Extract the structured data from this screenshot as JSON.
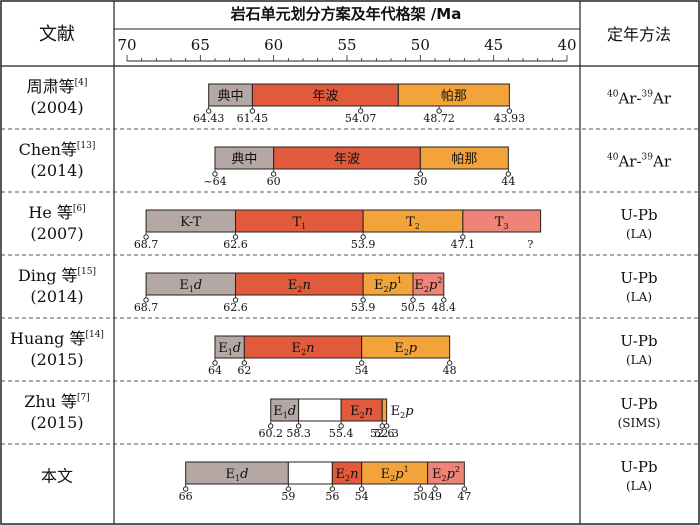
{
  "header": {
    "col_left": "文献",
    "col_mid": "岩石单元划分方案及年代格架 /Ma",
    "col_right": "定年方法"
  },
  "chart_data": {
    "type": "timeline",
    "xlabel": "Ma",
    "xlim": [
      70,
      40
    ],
    "axis_ticks": [
      70,
      65,
      60,
      55,
      50,
      45,
      40
    ],
    "minor_tick_step": 1,
    "colors": {
      "grey": "#b4a7a4",
      "red": "#e15a3c",
      "orange": "#f2a43a",
      "pink": "#ee8478",
      "white": "#ffffff"
    },
    "studies": [
      {
        "author": "周肃等",
        "ref": "[4]",
        "year": "(2004)",
        "method": "40Ar-39Ar",
        "method_sup1": "40",
        "method_base1": "Ar-",
        "method_sup2": "39",
        "method_base2": "Ar",
        "method_sub": "",
        "segments": [
          {
            "from": 64.43,
            "to": 61.45,
            "color": "grey",
            "label": "典中",
            "label_style": "cjk"
          },
          {
            "from": 61.45,
            "to": 51.5,
            "color": "red",
            "label": "年波",
            "label_style": "cjk"
          },
          {
            "from": 51.5,
            "to": 43.93,
            "color": "orange",
            "label": "帕那",
            "label_style": "cjk"
          }
        ],
        "ages": [
          {
            "x": 64.43,
            "label": "64.43"
          },
          {
            "x": 61.45,
            "label": "61.45"
          },
          {
            "x": 54.07,
            "label": "54.07"
          },
          {
            "x": 48.72,
            "label": "48.72"
          },
          {
            "x": 43.93,
            "label": "43.93"
          }
        ]
      },
      {
        "author": "Chen等",
        "ref": "[13]",
        "year": "(2014)",
        "method": "40Ar-39Ar",
        "method_sup1": "40",
        "method_base1": "Ar-",
        "method_sup2": "39",
        "method_base2": "Ar",
        "method_sub": "",
        "segments": [
          {
            "from": 64,
            "to": 60,
            "color": "grey",
            "label": "典中",
            "label_style": "cjk"
          },
          {
            "from": 60,
            "to": 50,
            "color": "red",
            "label": "年波",
            "label_style": "cjk"
          },
          {
            "from": 50,
            "to": 44,
            "color": "orange",
            "label": "帕那",
            "label_style": "cjk"
          }
        ],
        "ages": [
          {
            "x": 64,
            "label": "~64"
          },
          {
            "x": 60,
            "label": "60"
          },
          {
            "x": 50,
            "label": "50"
          },
          {
            "x": 44,
            "label": "44"
          }
        ]
      },
      {
        "author": "He 等",
        "ref": "[6]",
        "year": "(2007)",
        "method": "U-Pb",
        "method_sub": "(LA)",
        "segments": [
          {
            "from": 68.7,
            "to": 62.6,
            "color": "grey",
            "label": "K-T",
            "label_style": "plain"
          },
          {
            "from": 62.6,
            "to": 53.9,
            "color": "red",
            "label": "T",
            "label_sub": "1",
            "label_style": "tsub"
          },
          {
            "from": 53.9,
            "to": 47.1,
            "color": "orange",
            "label": "T",
            "label_sub": "2",
            "label_style": "tsub"
          },
          {
            "from": 47.1,
            "to": 41.8,
            "color": "pink",
            "label": "T",
            "label_sub": "3",
            "label_style": "tsub"
          }
        ],
        "ages": [
          {
            "x": 68.7,
            "label": "68.7"
          },
          {
            "x": 62.6,
            "label": "62.6"
          },
          {
            "x": 53.9,
            "label": "53.9"
          },
          {
            "x": 47.1,
            "label": "47.1"
          },
          {
            "x": 42.5,
            "label": "?",
            "no_marker": true
          }
        ]
      },
      {
        "author": "Ding 等",
        "ref": "[15]",
        "year": "(2014)",
        "method": "U-Pb",
        "method_sub": "(LA)",
        "segments": [
          {
            "from": 68.7,
            "to": 62.6,
            "color": "grey",
            "label_a": "E",
            "label_b": "1",
            "label_c": "d",
            "label_d": "",
            "label_style": "formation"
          },
          {
            "from": 62.6,
            "to": 53.9,
            "color": "red",
            "label_a": "E",
            "label_b": "2",
            "label_c": "n",
            "label_d": "",
            "label_style": "formation"
          },
          {
            "from": 53.9,
            "to": 50.5,
            "color": "orange",
            "label_a": "E",
            "label_b": "2",
            "label_c": "p",
            "label_d": "1",
            "label_style": "formation"
          },
          {
            "from": 50.5,
            "to": 48.4,
            "color": "pink",
            "label_a": "E",
            "label_b": "2",
            "label_c": "p",
            "label_d": "2",
            "label_style": "formation"
          }
        ],
        "ages": [
          {
            "x": 68.7,
            "label": "68.7"
          },
          {
            "x": 62.6,
            "label": "62.6"
          },
          {
            "x": 53.9,
            "label": "53.9"
          },
          {
            "x": 50.5,
            "label": "50.5"
          },
          {
            "x": 48.4,
            "label": "48.4"
          }
        ]
      },
      {
        "author": "Huang 等",
        "ref": "[14]",
        "year": "(2015)",
        "method": "U-Pb",
        "method_sub": "(LA)",
        "segments": [
          {
            "from": 64,
            "to": 62,
            "color": "grey",
            "label_a": "E",
            "label_b": "1",
            "label_c": "d",
            "label_d": "",
            "label_style": "formation"
          },
          {
            "from": 62,
            "to": 54,
            "color": "red",
            "label_a": "E",
            "label_b": "2",
            "label_c": "n",
            "label_d": "",
            "label_style": "formation"
          },
          {
            "from": 54,
            "to": 48,
            "color": "orange",
            "label_a": "E",
            "label_b": "2",
            "label_c": "p",
            "label_d": "",
            "label_style": "formation"
          }
        ],
        "ages": [
          {
            "x": 64,
            "label": "64"
          },
          {
            "x": 62,
            "label": "62"
          },
          {
            "x": 54,
            "label": "54"
          },
          {
            "x": 48,
            "label": "48"
          }
        ]
      },
      {
        "author": "Zhu 等",
        "ref": "[7]",
        "year": "(2015)",
        "method": "U-Pb",
        "method_sub": "(SIMS)",
        "segments": [
          {
            "from": 60.2,
            "to": 58.3,
            "color": "grey",
            "label_a": "E",
            "label_b": "1",
            "label_c": "d",
            "label_d": "",
            "label_style": "formation"
          },
          {
            "from": 58.3,
            "to": 55.4,
            "color": "white",
            "label_style": "none"
          },
          {
            "from": 55.4,
            "to": 52.6,
            "color": "red",
            "label_a": "E",
            "label_b": "2",
            "label_c": "n",
            "label_d": "",
            "label_style": "formation"
          },
          {
            "from": 52.6,
            "to": 52.3,
            "color": "orange",
            "label_a": "E",
            "label_b": "2",
            "label_c": "p",
            "label_d": "",
            "label_style": "formation",
            "label_outside": true
          }
        ],
        "ages": [
          {
            "x": 60.2,
            "label": "60.2"
          },
          {
            "x": 58.3,
            "label": "58.3"
          },
          {
            "x": 55.4,
            "label": "55.4"
          },
          {
            "x": 52.6,
            "label": "52.6"
          },
          {
            "x": 52.3,
            "label": "52.3"
          }
        ]
      },
      {
        "author": "本文",
        "ref": "",
        "year": "",
        "method": "U-Pb",
        "method_sub": "(LA)",
        "segments": [
          {
            "from": 66,
            "to": 59,
            "color": "grey",
            "label_a": "E",
            "label_b": "1",
            "label_c": "d",
            "label_d": "",
            "label_style": "formation"
          },
          {
            "from": 59,
            "to": 56,
            "color": "white",
            "label_style": "none"
          },
          {
            "from": 56,
            "to": 54,
            "color": "red",
            "label_a": "E",
            "label_b": "2",
            "label_c": "n",
            "label_d": "",
            "label_style": "formation"
          },
          {
            "from": 54,
            "to": 49.5,
            "color": "orange",
            "label_a": "E",
            "label_b": "2",
            "label_c": "p",
            "label_d": "1",
            "label_style": "formation"
          },
          {
            "from": 49.5,
            "to": 47,
            "color": "pink",
            "label_a": "E",
            "label_b": "2",
            "label_c": "p",
            "label_d": "2",
            "label_style": "formation"
          }
        ],
        "ages": [
          {
            "x": 66,
            "label": "66"
          },
          {
            "x": 59,
            "label": "59"
          },
          {
            "x": 56,
            "label": "56"
          },
          {
            "x": 54,
            "label": "54"
          },
          {
            "x": 50,
            "label": "50"
          },
          {
            "x": 49,
            "label": "49"
          },
          {
            "x": 47,
            "label": "47"
          }
        ]
      }
    ]
  }
}
